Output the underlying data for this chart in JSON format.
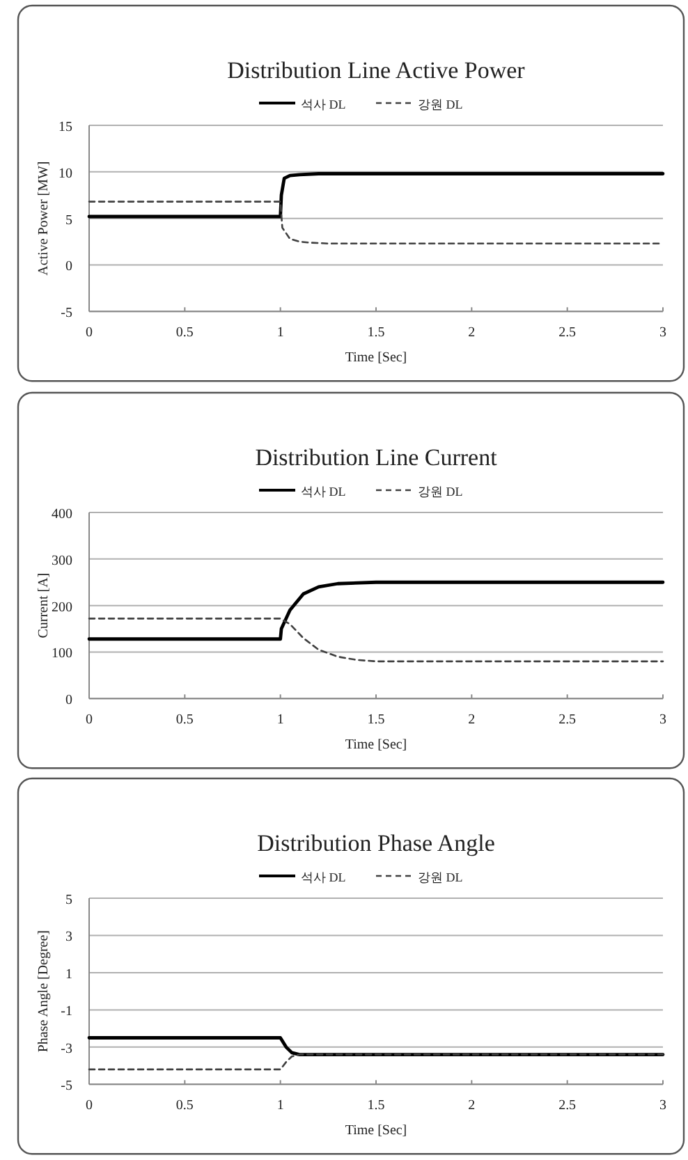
{
  "chart_data": [
    {
      "type": "line",
      "title": "Distribution Line Active  Power",
      "xlabel": "Time [Sec]",
      "ylabel": "Active Power [MW]",
      "xlim": [
        0,
        3
      ],
      "xticks": [
        0,
        0.5,
        1,
        1.5,
        2,
        2.5,
        3
      ],
      "ylim": [
        -5,
        15
      ],
      "yticks": [
        -5,
        0,
        5,
        10,
        15
      ],
      "grid": "y",
      "legend": "top",
      "series": [
        {
          "name": "석사 DL",
          "color": "#000000",
          "line_style": "solid",
          "x": [
            0,
            1.0,
            1.005,
            1.02,
            1.05,
            1.1,
            1.2,
            3
          ],
          "values": [
            5.2,
            5.2,
            7.5,
            9.3,
            9.6,
            9.7,
            9.8,
            9.8
          ]
        },
        {
          "name": "강원 DL",
          "color": "#404040",
          "line_style": "dashed",
          "x": [
            0,
            1.0,
            1.01,
            1.05,
            1.1,
            1.15,
            1.25,
            3
          ],
          "values": [
            6.8,
            6.8,
            4.0,
            2.8,
            2.5,
            2.4,
            2.3,
            2.3
          ]
        }
      ]
    },
    {
      "type": "line",
      "title": "Distribution Line Current",
      "xlabel": "Time [Sec]",
      "ylabel": "Current [A]",
      "xlim": [
        0,
        3
      ],
      "xticks": [
        0,
        0.5,
        1,
        1.5,
        2,
        2.5,
        3
      ],
      "ylim": [
        0,
        400
      ],
      "yticks": [
        0,
        100,
        200,
        300,
        400
      ],
      "grid": "y",
      "legend": "top",
      "series": [
        {
          "name": "석사 DL",
          "color": "#000000",
          "line_style": "solid",
          "x": [
            0,
            1.0,
            1.005,
            1.05,
            1.12,
            1.2,
            1.3,
            1.5,
            3
          ],
          "values": [
            128,
            128,
            150,
            190,
            225,
            240,
            247,
            250,
            250
          ]
        },
        {
          "name": "강원 DL",
          "color": "#404040",
          "line_style": "dashed",
          "x": [
            0,
            1.0,
            1.05,
            1.12,
            1.2,
            1.3,
            1.4,
            1.5,
            3
          ],
          "values": [
            172,
            172,
            160,
            130,
            105,
            90,
            83,
            80,
            80
          ]
        }
      ]
    },
    {
      "type": "line",
      "title": "Distribution Phase Angle",
      "xlabel": "Time [Sec]",
      "ylabel": "Phase Angle [Degree]",
      "xlim": [
        0,
        3
      ],
      "xticks": [
        0,
        0.5,
        1,
        1.5,
        2,
        2.5,
        3
      ],
      "ylim": [
        -5,
        5
      ],
      "yticks": [
        -5,
        -3,
        -1,
        1,
        3,
        5
      ],
      "grid": "y",
      "legend": "top",
      "series": [
        {
          "name": "석사 DL",
          "color": "#000000",
          "line_style": "solid",
          "x": [
            0,
            1.0,
            1.03,
            1.06,
            1.1,
            3
          ],
          "values": [
            -2.5,
            -2.5,
            -3.0,
            -3.3,
            -3.4,
            -3.4
          ]
        },
        {
          "name": "강원 DL",
          "color": "#404040",
          "line_style": "dashed",
          "x": [
            0,
            1.0,
            1.03,
            1.06,
            1.1,
            3
          ],
          "values": [
            -4.2,
            -4.2,
            -3.8,
            -3.5,
            -3.4,
            -3.4
          ]
        }
      ]
    }
  ]
}
